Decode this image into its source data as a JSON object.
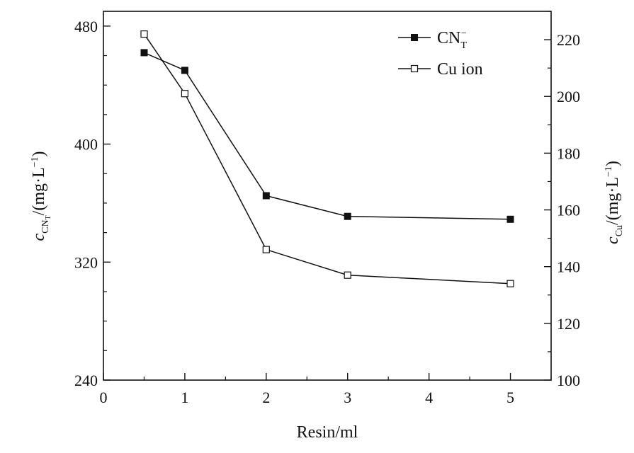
{
  "chart_data": {
    "type": "line",
    "x": [
      0.5,
      1,
      2,
      3,
      5
    ],
    "xlabel": "Resin/ml",
    "xlim": [
      0,
      5.5
    ],
    "xticks": [
      "0",
      "1",
      "2",
      "3",
      "4",
      "5"
    ],
    "ylabel_left": "c",
    "ylabel_left_sub": "CN",
    "ylabel_left_subsub": "T",
    "ylabel_left_unit": "/(mg·L",
    "ylabel_left_exp": "−1",
    "ylabel_left_close": ")",
    "ylim_left": [
      240,
      490
    ],
    "yticks_left": [
      "240",
      "320",
      "400",
      "480"
    ],
    "ylabel_right": "c",
    "ylabel_right_sub": "Cu",
    "ylabel_right_unit": "/(mg·L",
    "ylabel_right_exp": "−1",
    "ylabel_right_close": ")",
    "ylim_right": [
      100,
      230
    ],
    "yticks_right": [
      "100",
      "120",
      "140",
      "160",
      "180",
      "200",
      "220"
    ],
    "legend_position": "top-right",
    "grid": false,
    "series": [
      {
        "name": "CN",
        "name_sub": "T",
        "name_sup": "−",
        "axis": "left",
        "marker": "filled-square",
        "values": [
          462,
          450,
          365,
          351,
          349
        ]
      },
      {
        "name": "Cu ion",
        "axis": "right",
        "marker": "open-square",
        "values": [
          222,
          201,
          146,
          137,
          134
        ]
      }
    ]
  }
}
